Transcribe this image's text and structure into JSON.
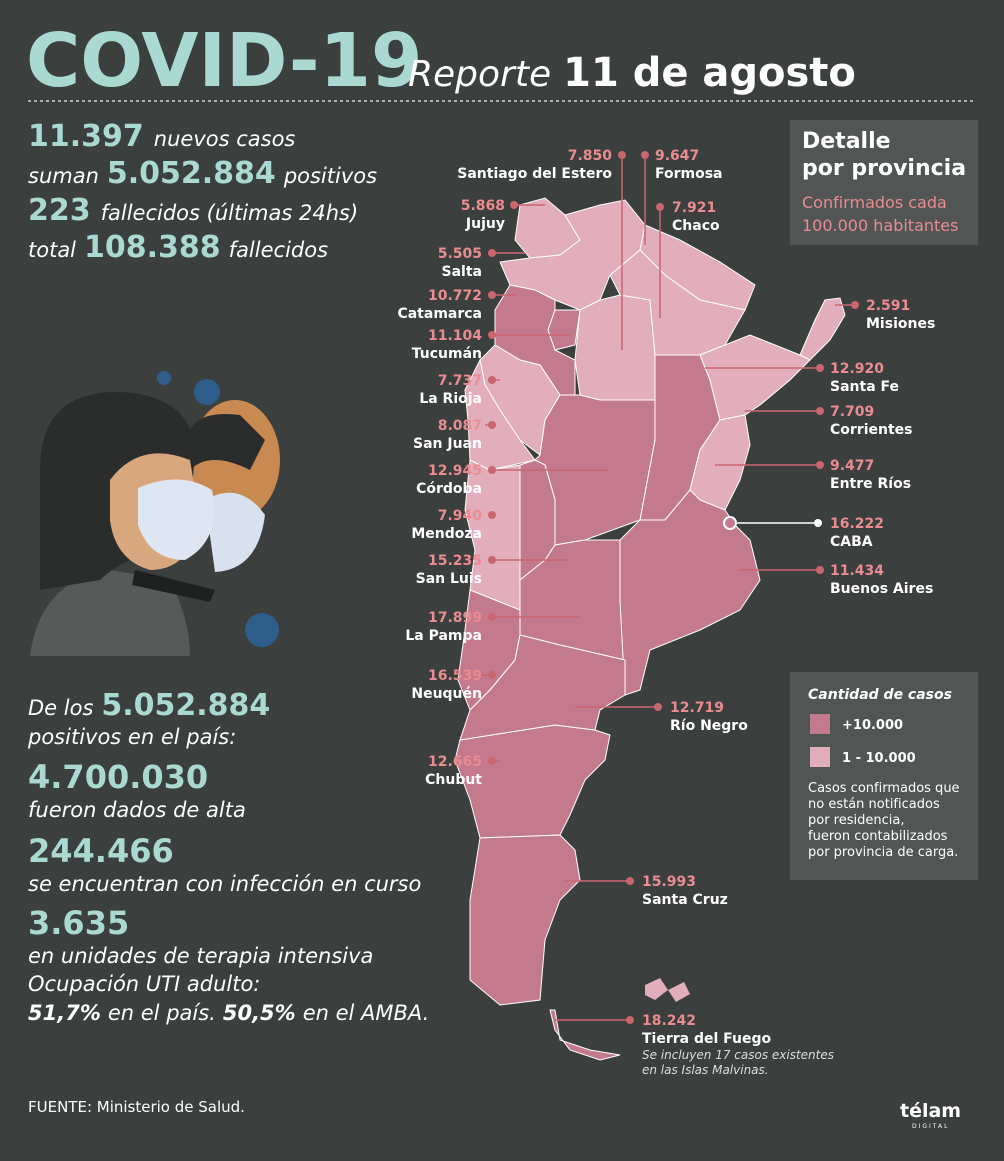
{
  "header": {
    "title": "COVID-19",
    "subtitle_prefix": "Reporte",
    "subtitle_date": "11 de agosto"
  },
  "summary": [
    {
      "number": "11.397",
      "after": "nuevos casos"
    },
    {
      "before": "suman",
      "number": "5.052.884",
      "after": "positivos"
    },
    {
      "number": "223",
      "after": "fallecidos (últimas 24hs)"
    },
    {
      "before": "total",
      "number": "108.388",
      "after": "fallecidos"
    }
  ],
  "breakdown": {
    "intro": {
      "before": "De los",
      "number": "5.052.884",
      "after": "positivos en el país:"
    },
    "items": [
      {
        "number": "4.700.030",
        "text": "fueron dados de alta"
      },
      {
        "number": "244.466",
        "text": "se encuentran con infección en curso"
      },
      {
        "number": "3.635",
        "text": "en unidades de terapia intensiva"
      }
    ],
    "uti_title": "Ocupación UTI adulto:",
    "uti_country_value": "51,7%",
    "uti_country_text": "en el país.",
    "uti_amba_value": "50,5%",
    "uti_amba_text": "en el AMBA."
  },
  "detail_box": {
    "title_lines": [
      "Detalle",
      "por provincia"
    ],
    "subtitle_lines": [
      "Confirmados cada",
      "100.000 habitantes"
    ]
  },
  "legend": {
    "title": "Cantidad de casos",
    "items": [
      {
        "label": "+10.000",
        "color": "#c47a8d"
      },
      {
        "label": "1 - 10.000",
        "color": "#e2aebb"
      }
    ],
    "note_lines": [
      "Casos confirmados que",
      "no están notificados",
      "por residencia,",
      "fueron contabilizados",
      "por provincia de carga."
    ]
  },
  "provinces": [
    {
      "name": "Santiago del Estero",
      "value": "7.850",
      "legend": 1
    },
    {
      "name": "Formosa",
      "value": "9.647",
      "legend": 1
    },
    {
      "name": "Jujuy",
      "value": "5.868",
      "legend": 1
    },
    {
      "name": "Chaco",
      "value": "7.921",
      "legend": 1
    },
    {
      "name": "Salta",
      "value": "5.505",
      "legend": 1
    },
    {
      "name": "Catamarca",
      "value": "10.772",
      "legend": 0
    },
    {
      "name": "Tucumán",
      "value": "11.104",
      "legend": 0
    },
    {
      "name": "La Rioja",
      "value": "7.737",
      "legend": 1
    },
    {
      "name": "San Juan",
      "value": "8.087",
      "legend": 1
    },
    {
      "name": "Córdoba",
      "value": "12.945",
      "legend": 0
    },
    {
      "name": "Mendoza",
      "value": "7.940",
      "legend": 1
    },
    {
      "name": "San Luis",
      "value": "15.235",
      "legend": 0
    },
    {
      "name": "La Pampa",
      "value": "17.899",
      "legend": 0
    },
    {
      "name": "Neuquén",
      "value": "16.539",
      "legend": 0
    },
    {
      "name": "Chubut",
      "value": "12.665",
      "legend": 0
    },
    {
      "name": "Misiones",
      "value": "2.591",
      "legend": 1
    },
    {
      "name": "Santa Fe",
      "value": "12.920",
      "legend": 0
    },
    {
      "name": "Corrientes",
      "value": "7.709",
      "legend": 1
    },
    {
      "name": "Entre Ríos",
      "value": "9.477",
      "legend": 1
    },
    {
      "name": "CABA",
      "value": "16.222",
      "legend": 0
    },
    {
      "name": "Buenos Aires",
      "value": "11.434",
      "legend": 0
    },
    {
      "name": "Río Negro",
      "value": "12.719",
      "legend": 0
    },
    {
      "name": "Santa Cruz",
      "value": "15.993",
      "legend": 0
    },
    {
      "name": "Tierra del Fuego",
      "value": "18.242",
      "legend": 0,
      "note_lines": [
        "Se incluyen 17 casos existentes",
        "en las Islas Malvinas."
      ]
    }
  ],
  "footer": {
    "source": "FUENTE: Ministerio de Salud.",
    "logo": "télam",
    "logo_sub": "DIGITAL"
  }
}
